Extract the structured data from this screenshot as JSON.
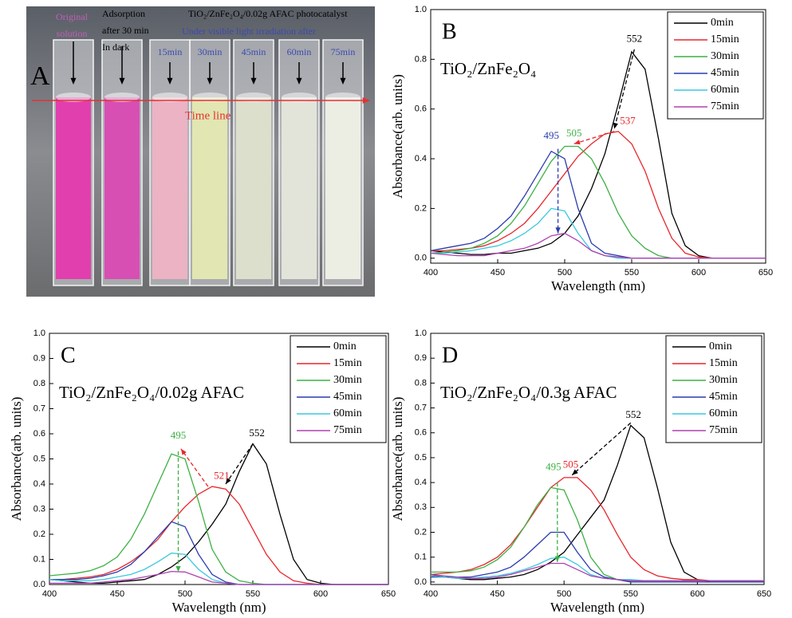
{
  "photo_panel": {
    "panel": "A",
    "original_label": [
      "Original",
      "solution"
    ],
    "adsorption_label": [
      "Adsorption",
      "after 30 min",
      "In dark"
    ],
    "catalyst": "TiO₂/ZnFe₂O₄/0.02g AFAC photocatalyst",
    "irradiation": "Under visible light irradiation after",
    "times": [
      "15min",
      "30min",
      "45min",
      "60min",
      "75min"
    ],
    "timeline": "Time line"
  },
  "chart_data": [
    {
      "type": "line",
      "panel": "B",
      "title": "TiO₂/ZnFe₂O₄",
      "x_label": "Wavelength (nm)",
      "y_label": "Absorbance(arb. units)",
      "xlim": [
        400,
        650
      ],
      "xticks": [
        400,
        450,
        500,
        550,
        600,
        650
      ],
      "ylim": [
        -0.02,
        1.0
      ],
      "yticks": [
        {
          "value": 0,
          "label": "0.0"
        },
        0.2,
        0.4,
        0.6,
        0.8,
        {
          "value": 1,
          "label": "1.0"
        }
      ],
      "legend": "upper right",
      "x": [
        400,
        410,
        420,
        430,
        440,
        450,
        460,
        470,
        480,
        490,
        500,
        510,
        520,
        530,
        540,
        550,
        560,
        570,
        580,
        590,
        600,
        610,
        620,
        630,
        640,
        650
      ],
      "series": [
        {
          "name": "0min",
          "color": "#000000",
          "values": [
            0.03,
            0.025,
            0.02,
            0.015,
            0.015,
            0.02,
            0.02,
            0.03,
            0.04,
            0.06,
            0.1,
            0.17,
            0.28,
            0.42,
            0.62,
            0.83,
            0.76,
            0.48,
            0.18,
            0.05,
            0.01,
            0,
            0,
            0,
            0,
            0
          ]
        },
        {
          "name": "15min",
          "color": "#e8262a",
          "values": [
            0.03,
            0.03,
            0.035,
            0.04,
            0.05,
            0.07,
            0.1,
            0.14,
            0.2,
            0.27,
            0.34,
            0.41,
            0.46,
            0.5,
            0.51,
            0.46,
            0.35,
            0.2,
            0.08,
            0.02,
            0.005,
            0,
            0,
            0,
            0,
            0
          ]
        },
        {
          "name": "30min",
          "color": "#3cb043",
          "values": [
            0.02,
            0.025,
            0.03,
            0.04,
            0.06,
            0.09,
            0.14,
            0.21,
            0.3,
            0.39,
            0.45,
            0.45,
            0.4,
            0.3,
            0.18,
            0.09,
            0.04,
            0.01,
            0,
            0,
            0,
            0,
            0,
            0,
            0,
            0
          ]
        },
        {
          "name": "45min",
          "color": "#2a3cae",
          "values": [
            0.03,
            0.04,
            0.05,
            0.06,
            0.08,
            0.12,
            0.17,
            0.25,
            0.34,
            0.43,
            0.4,
            0.2,
            0.06,
            0.02,
            0.01,
            0,
            0,
            0,
            0,
            0,
            0,
            0,
            0,
            0,
            0,
            0
          ]
        },
        {
          "name": "60min",
          "color": "#3cc8e0",
          "values": [
            0.02,
            0.02,
            0.025,
            0.03,
            0.04,
            0.05,
            0.07,
            0.1,
            0.14,
            0.2,
            0.19,
            0.1,
            0.03,
            0.01,
            0,
            0,
            0,
            0,
            0,
            0,
            0,
            0,
            0,
            0,
            0,
            0
          ]
        },
        {
          "name": "75min",
          "color": "#b040b0",
          "values": [
            0.02,
            0.015,
            0.01,
            0.01,
            0.01,
            0.02,
            0.03,
            0.04,
            0.06,
            0.09,
            0.1,
            0.07,
            0.03,
            0.01,
            0.005,
            0,
            0,
            0,
            0,
            0,
            0,
            0,
            0,
            0,
            0,
            0
          ]
        }
      ],
      "annotations": [
        {
          "text": "552",
          "x": 552,
          "y": 0.88,
          "color": "#000000"
        },
        {
          "text": "537",
          "x": 547,
          "y": 0.55,
          "color": "#e8262a"
        },
        {
          "text": "505",
          "x": 507,
          "y": 0.5,
          "color": "#3cb043"
        },
        {
          "text": "495",
          "x": 490,
          "y": 0.49,
          "color": "#2a3cae"
        }
      ],
      "arrows": [
        {
          "from": [
            552,
            0.84
          ],
          "to": [
            537,
            0.52
          ],
          "color": "#000000"
        },
        {
          "from": [
            537,
            0.51
          ],
          "to": [
            507,
            0.46
          ],
          "color": "#e8262a"
        },
        {
          "from": [
            495,
            0.44
          ],
          "to": [
            495,
            0.1
          ],
          "color": "#2a3cae"
        }
      ]
    },
    {
      "type": "line",
      "panel": "C",
      "title": "TiO₂/ZnFe₂O₄/0.02g AFAC",
      "x_label": "Wavelength (nm)",
      "y_label": "Absorbance(arb. units)",
      "xlim": [
        400,
        650
      ],
      "xticks": [
        400,
        450,
        500,
        550,
        600,
        650
      ],
      "ylim": [
        0,
        1.0
      ],
      "yticks": [
        {
          "value": 0,
          "label": "0.0"
        },
        0.1,
        0.2,
        0.3,
        0.4,
        0.5,
        0.6,
        0.7,
        0.8,
        0.9,
        {
          "value": 1,
          "label": "1.0"
        }
      ],
      "legend": "upper right",
      "x": [
        400,
        410,
        420,
        430,
        440,
        450,
        460,
        470,
        480,
        490,
        500,
        510,
        520,
        530,
        540,
        550,
        560,
        570,
        580,
        590,
        600,
        610,
        620,
        630,
        640,
        650
      ],
      "series": [
        {
          "name": "0min",
          "color": "#000000",
          "values": [
            0.02,
            0.015,
            0.01,
            0.005,
            0.005,
            0.01,
            0.015,
            0.02,
            0.04,
            0.07,
            0.11,
            0.17,
            0.24,
            0.32,
            0.45,
            0.56,
            0.48,
            0.28,
            0.1,
            0.02,
            0.005,
            0,
            0,
            0,
            0,
            0
          ]
        },
        {
          "name": "15min",
          "color": "#e8262a",
          "values": [
            0.02,
            0.02,
            0.025,
            0.03,
            0.04,
            0.06,
            0.09,
            0.13,
            0.18,
            0.25,
            0.31,
            0.36,
            0.39,
            0.38,
            0.32,
            0.22,
            0.12,
            0.05,
            0.015,
            0.005,
            0,
            0,
            0,
            0,
            0,
            0
          ]
        },
        {
          "name": "30min",
          "color": "#3cb043",
          "values": [
            0.035,
            0.04,
            0.045,
            0.055,
            0.075,
            0.11,
            0.18,
            0.28,
            0.4,
            0.52,
            0.5,
            0.33,
            0.14,
            0.05,
            0.015,
            0.005,
            0,
            0,
            0,
            0,
            0,
            0,
            0,
            0,
            0,
            0
          ]
        },
        {
          "name": "45min",
          "color": "#2a3cae",
          "values": [
            0.02,
            0.02,
            0.02,
            0.025,
            0.035,
            0.05,
            0.08,
            0.13,
            0.19,
            0.25,
            0.23,
            0.12,
            0.04,
            0.01,
            0,
            0,
            0,
            0,
            0,
            0,
            0,
            0,
            0,
            0,
            0,
            0
          ]
        },
        {
          "name": "60min",
          "color": "#3cc8e0",
          "values": [
            0.02,
            0.015,
            0.015,
            0.015,
            0.02,
            0.03,
            0.04,
            0.06,
            0.09,
            0.125,
            0.12,
            0.06,
            0.02,
            0.005,
            0,
            0,
            0,
            0,
            0,
            0,
            0,
            0,
            0,
            0,
            0,
            0
          ]
        },
        {
          "name": "75min",
          "color": "#b040b0",
          "values": [
            0.005,
            0.005,
            0.005,
            0.005,
            0.01,
            0.015,
            0.02,
            0.03,
            0.04,
            0.052,
            0.05,
            0.03,
            0.01,
            0.005,
            0,
            0,
            0,
            0,
            0,
            0,
            0,
            0,
            0,
            0,
            0,
            0
          ]
        }
      ],
      "annotations": [
        {
          "text": "552",
          "x": 553,
          "y": 0.6,
          "color": "#000000"
        },
        {
          "text": "521",
          "x": 527,
          "y": 0.43,
          "color": "#e8262a"
        },
        {
          "text": "495",
          "x": 495,
          "y": 0.59,
          "color": "#3cb043"
        }
      ],
      "arrows": [
        {
          "from": [
            550,
            0.56
          ],
          "to": [
            530,
            0.4
          ],
          "color": "#000000"
        },
        {
          "from": [
            517,
            0.39
          ],
          "to": [
            497,
            0.54
          ],
          "color": "#e8262a"
        },
        {
          "from": [
            495,
            0.53
          ],
          "to": [
            495,
            0.05
          ],
          "color": "#3cb043"
        }
      ]
    },
    {
      "type": "line",
      "panel": "D",
      "title": "TiO₂/ZnFe₂O₄/0.3g AFAC",
      "x_label": "Wavelength (nm)",
      "y_label": "Absorbance(arb. units)",
      "xlim": [
        400,
        650
      ],
      "xticks": [
        400,
        450,
        500,
        550,
        600,
        650
      ],
      "ylim": [
        -0.01,
        1.0
      ],
      "yticks": [
        {
          "value": 0,
          "label": "0.0"
        },
        0.1,
        0.2,
        0.3,
        0.4,
        0.5,
        0.6,
        0.7,
        0.8,
        0.9,
        {
          "value": 1,
          "label": "1.0"
        }
      ],
      "legend": "upper right",
      "x": [
        400,
        410,
        420,
        430,
        440,
        450,
        460,
        470,
        480,
        490,
        500,
        510,
        520,
        530,
        540,
        550,
        560,
        570,
        580,
        590,
        600,
        610,
        620,
        630,
        640,
        650
      ],
      "series": [
        {
          "name": "0min",
          "color": "#000000",
          "values": [
            0.03,
            0.02,
            0.015,
            0.01,
            0.01,
            0.015,
            0.02,
            0.03,
            0.05,
            0.08,
            0.12,
            0.19,
            0.26,
            0.33,
            0.47,
            0.63,
            0.58,
            0.38,
            0.16,
            0.04,
            0.01,
            0,
            0,
            0,
            0,
            0
          ]
        },
        {
          "name": "15min",
          "color": "#e8262a",
          "values": [
            0.03,
            0.035,
            0.04,
            0.05,
            0.07,
            0.1,
            0.15,
            0.22,
            0.3,
            0.38,
            0.42,
            0.42,
            0.37,
            0.29,
            0.19,
            0.1,
            0.05,
            0.025,
            0.015,
            0.01,
            0.01,
            0.005,
            0.005,
            0.005,
            0.005,
            0.005
          ]
        },
        {
          "name": "30min",
          "color": "#3cb043",
          "values": [
            0.04,
            0.04,
            0.04,
            0.045,
            0.06,
            0.09,
            0.14,
            0.22,
            0.31,
            0.38,
            0.37,
            0.25,
            0.1,
            0.03,
            0.01,
            0,
            0,
            0,
            0,
            0,
            0,
            0,
            0,
            0,
            0,
            0
          ]
        },
        {
          "name": "45min",
          "color": "#2a3cae",
          "values": [
            0.02,
            0.02,
            0.02,
            0.02,
            0.03,
            0.04,
            0.06,
            0.1,
            0.15,
            0.2,
            0.2,
            0.12,
            0.05,
            0.02,
            0.01,
            0,
            0,
            0,
            0,
            0,
            0,
            0,
            0,
            0,
            0,
            0
          ]
        },
        {
          "name": "60min",
          "color": "#3cc8e0",
          "values": [
            0.025,
            0.02,
            0.015,
            0.015,
            0.02,
            0.025,
            0.035,
            0.05,
            0.07,
            0.095,
            0.1,
            0.07,
            0.03,
            0.015,
            0.01,
            0.01,
            0.005,
            0.005,
            0.005,
            0.005,
            0.005,
            0.005,
            0.005,
            0.005,
            0.005,
            0.005
          ]
        },
        {
          "name": "75min",
          "color": "#b040b0",
          "values": [
            0.03,
            0.025,
            0.02,
            0.015,
            0.015,
            0.02,
            0.03,
            0.045,
            0.06,
            0.075,
            0.075,
            0.05,
            0.025,
            0.015,
            0.01,
            0.005,
            0.005,
            0.005,
            0.005,
            0.005,
            0.005,
            0.005,
            0.005,
            0.005,
            0.005,
            0.005
          ]
        }
      ],
      "annotations": [
        {
          "text": "552",
          "x": 552,
          "y": 0.67,
          "color": "#000000"
        },
        {
          "text": "505",
          "x": 505,
          "y": 0.47,
          "color": "#e8262a"
        },
        {
          "text": "495",
          "x": 492,
          "y": 0.46,
          "color": "#3cb043"
        }
      ],
      "arrows": [
        {
          "from": [
            550,
            0.64
          ],
          "to": [
            506,
            0.43
          ],
          "color": "#000000"
        },
        {
          "from": [
            495,
            0.4
          ],
          "to": [
            495,
            0.08
          ],
          "color": "#3cb043"
        }
      ]
    }
  ]
}
